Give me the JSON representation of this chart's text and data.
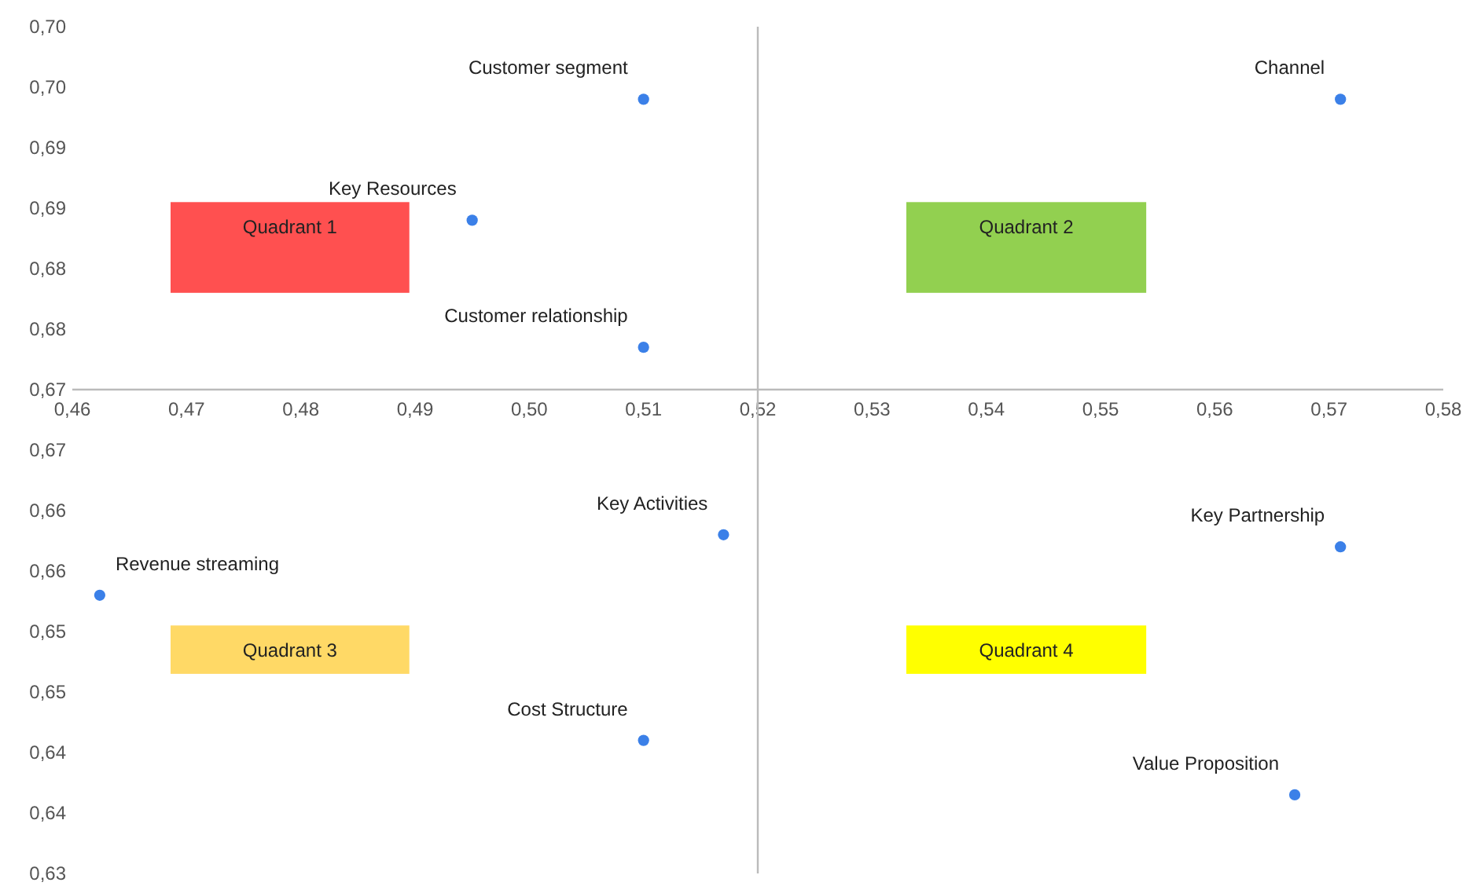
{
  "chart_data": {
    "type": "scatter",
    "marker": "circle",
    "grid": false,
    "xlim": [
      0.46,
      0.58
    ],
    "xticks": [
      {
        "value": 0.46,
        "label": "0,46"
      },
      {
        "value": 0.47,
        "label": "0,47"
      },
      {
        "value": 0.48,
        "label": "0,48"
      },
      {
        "value": 0.49,
        "label": "0,49"
      },
      {
        "value": 0.5,
        "label": "0,50"
      },
      {
        "value": 0.51,
        "label": "0,51"
      },
      {
        "value": 0.52,
        "label": "0,52"
      },
      {
        "value": 0.53,
        "label": "0,53"
      },
      {
        "value": 0.54,
        "label": "0,54"
      },
      {
        "value": 0.55,
        "label": "0,55"
      },
      {
        "value": 0.56,
        "label": "0,56"
      },
      {
        "value": 0.57,
        "label": "0,57"
      },
      {
        "value": 0.58,
        "label": "0,58"
      }
    ],
    "ylim": [
      0.63,
      0.7
    ],
    "yticks": [
      {
        "value": 0.63,
        "label": "0,63"
      },
      {
        "value": 0.635,
        "label": "0,64"
      },
      {
        "value": 0.64,
        "label": "0,64"
      },
      {
        "value": 0.645,
        "label": "0,65"
      },
      {
        "value": 0.65,
        "label": "0,65"
      },
      {
        "value": 0.655,
        "label": "0,66"
      },
      {
        "value": 0.66,
        "label": "0,66"
      },
      {
        "value": 0.665,
        "label": "0,67"
      },
      {
        "value": 0.67,
        "label": "0,67"
      },
      {
        "value": 0.675,
        "label": "0,68"
      },
      {
        "value": 0.68,
        "label": "0,68"
      },
      {
        "value": 0.685,
        "label": "0,69"
      },
      {
        "value": 0.69,
        "label": "0,69"
      },
      {
        "value": 0.695,
        "label": "0,70"
      },
      {
        "value": 0.7,
        "label": "0,70"
      }
    ],
    "series": [
      {
        "name": "Customer segment",
        "color": "#3b80e8",
        "x": [
          0.51
        ],
        "values": [
          0.694
        ]
      },
      {
        "name": "Channel",
        "color": "#3b80e8",
        "x": [
          0.571
        ],
        "values": [
          0.694
        ]
      },
      {
        "name": "Key Resources",
        "color": "#3b80e8",
        "x": [
          0.495
        ],
        "values": [
          0.684
        ]
      },
      {
        "name": "Customer relationship",
        "color": "#3b80e8",
        "x": [
          0.51
        ],
        "values": [
          0.6735
        ]
      },
      {
        "name": "Key Activities",
        "color": "#3b80e8",
        "x": [
          0.517
        ],
        "values": [
          0.658
        ]
      },
      {
        "name": "Revenue streaming",
        "color": "#3b80e8",
        "x": [
          0.4624
        ],
        "values": [
          0.653
        ]
      },
      {
        "name": "Key Partnership",
        "color": "#3b80e8",
        "x": [
          0.571
        ],
        "values": [
          0.657
        ]
      },
      {
        "name": "Cost Structure",
        "color": "#3b80e8",
        "x": [
          0.51
        ],
        "values": [
          0.641
        ]
      },
      {
        "name": "Value Proposition",
        "color": "#3b80e8",
        "x": [
          0.567
        ],
        "values": [
          0.6365
        ]
      }
    ],
    "ref_lines": [
      {
        "axis": "x",
        "value": 0.52
      }
    ],
    "annotations": [
      "Quadrant 1",
      "Quadrant 2",
      "Quadrant 3",
      "Quadrant 4"
    ]
  }
}
